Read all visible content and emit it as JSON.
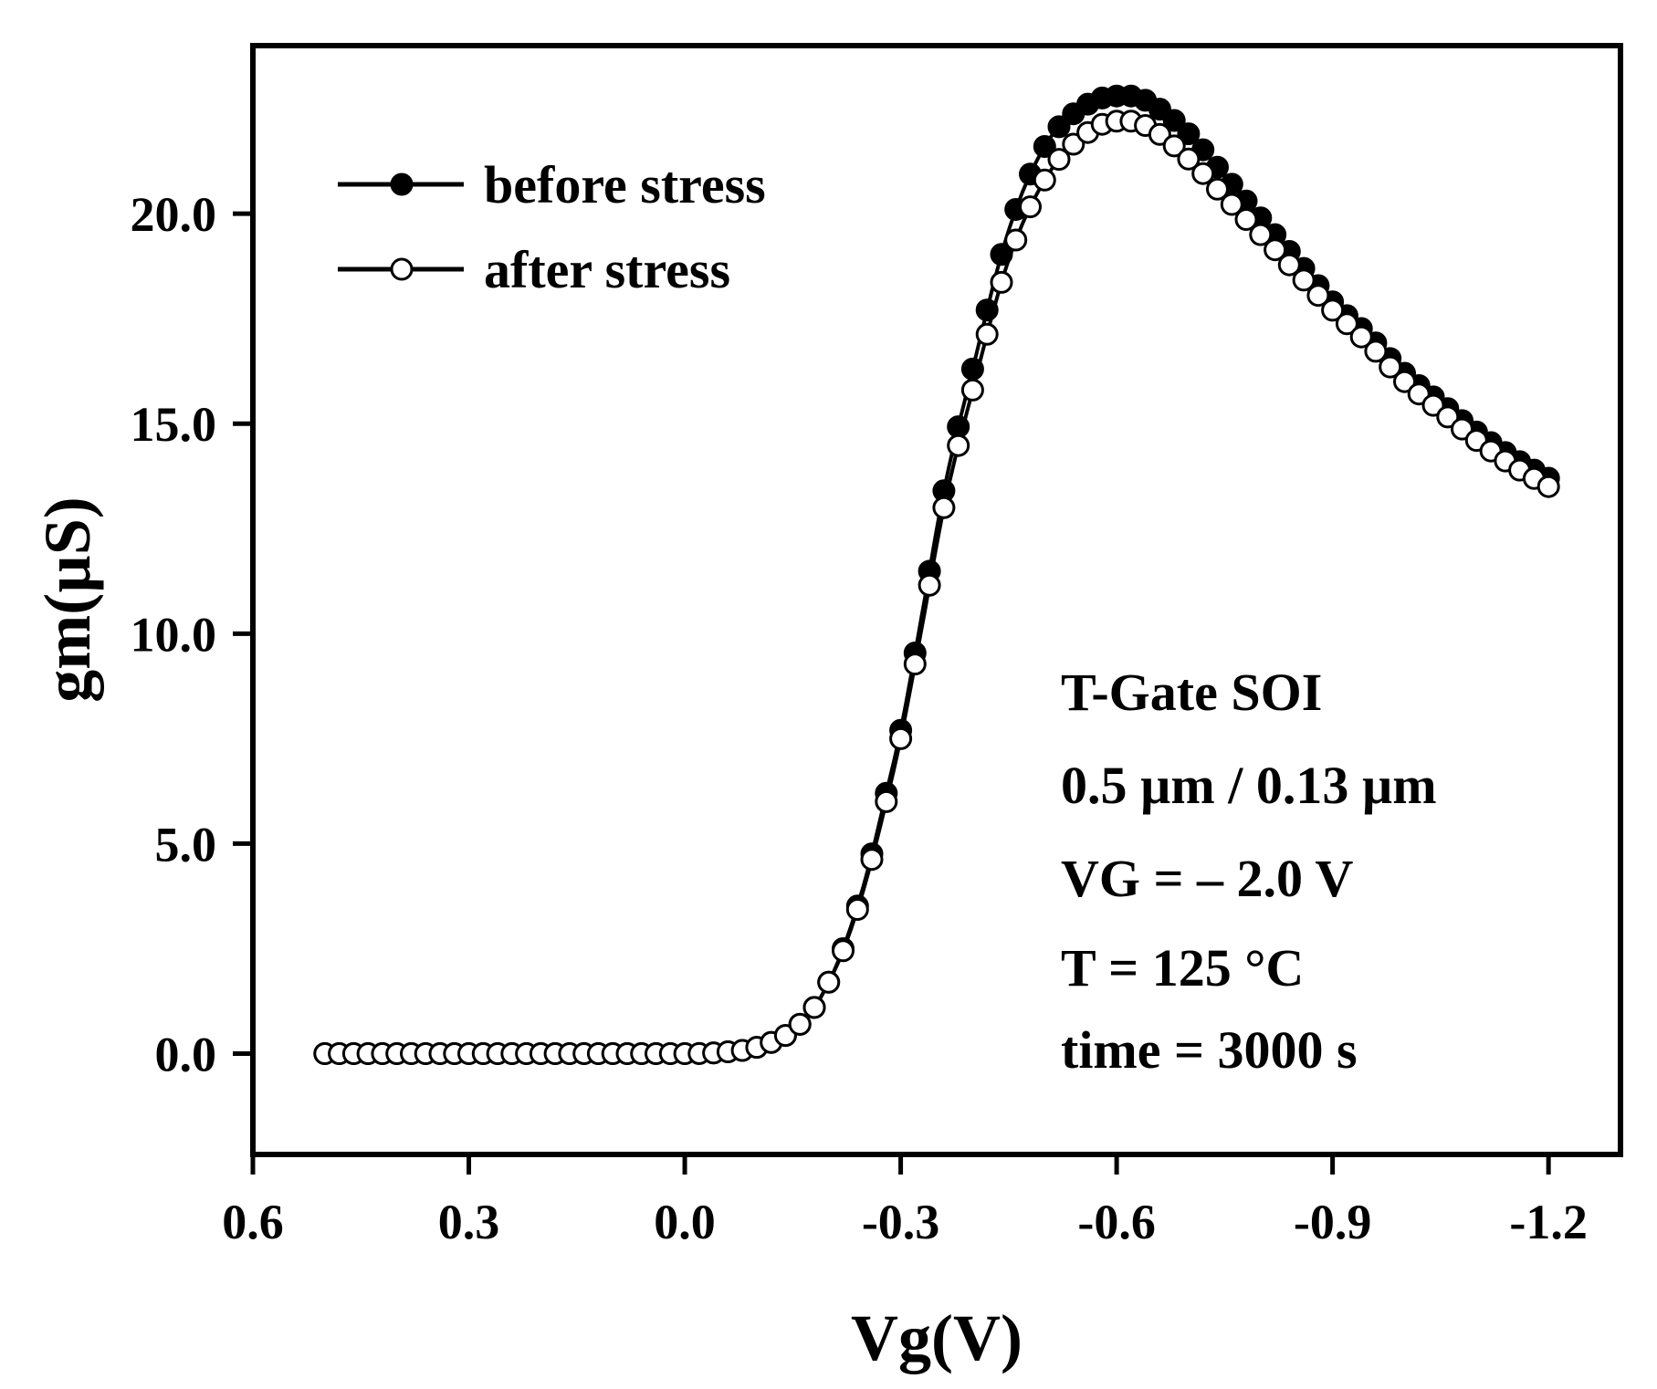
{
  "chart_data": {
    "type": "scatter",
    "title": "",
    "xlabel": "Vg(V)",
    "ylabel": "gm(µS)",
    "xlim": [
      0.6,
      -1.3
    ],
    "ylim": [
      -2.4,
      24.0
    ],
    "x_reversed": true,
    "xticks": [
      0.6,
      0.3,
      0.0,
      -0.3,
      -0.6,
      -0.9,
      -1.2
    ],
    "xtick_labels": [
      "0.6",
      "0.3",
      "0.0",
      "-0.3",
      "-0.6",
      "-0.9",
      "-1.2"
    ],
    "yticks": [
      0.0,
      5.0,
      10.0,
      15.0,
      20.0
    ],
    "ytick_labels": [
      "0.0",
      "5.0",
      "10.0",
      "15.0",
      "20.0"
    ],
    "legend_position": "top-left",
    "annotation_lines": [
      "T-Gate SOI",
      "0.5 µm / 0.13 µm",
      "VG = – 2.0 V",
      "T = 125 °C",
      "time = 3000 s"
    ],
    "series": [
      {
        "name": "before stress",
        "marker": "filled-circle",
        "color": "#000000",
        "points": [
          [
            0.5,
            0.0
          ],
          [
            0.4,
            0.0
          ],
          [
            0.3,
            0.0
          ],
          [
            0.2,
            0.0
          ],
          [
            0.1,
            0.0
          ],
          [
            0.0,
            0.0
          ],
          [
            -0.05,
            0.03
          ],
          [
            -0.1,
            0.15
          ],
          [
            -0.15,
            0.55
          ],
          [
            -0.18,
            1.1
          ],
          [
            -0.2,
            1.7
          ],
          [
            -0.22,
            2.5
          ],
          [
            -0.25,
            4.1
          ],
          [
            -0.28,
            6.2
          ],
          [
            -0.3,
            7.7
          ],
          [
            -0.33,
            10.5
          ],
          [
            -0.36,
            13.4
          ],
          [
            -0.4,
            16.3
          ],
          [
            -0.45,
            19.6
          ],
          [
            -0.5,
            21.6
          ],
          [
            -0.55,
            22.5
          ],
          [
            -0.6,
            22.8
          ],
          [
            -0.62,
            22.8
          ],
          [
            -0.65,
            22.6
          ],
          [
            -0.7,
            21.9
          ],
          [
            -0.75,
            20.9
          ],
          [
            -0.8,
            19.9
          ],
          [
            -0.85,
            18.9
          ],
          [
            -0.9,
            17.9
          ],
          [
            -0.95,
            17.1
          ],
          [
            -1.0,
            16.2
          ],
          [
            -1.05,
            15.5
          ],
          [
            -1.1,
            14.8
          ],
          [
            -1.15,
            14.2
          ],
          [
            -1.2,
            13.7
          ]
        ]
      },
      {
        "name": "after stress",
        "marker": "open-circle",
        "color": "#000000",
        "points": [
          [
            0.5,
            0.0
          ],
          [
            0.4,
            0.0
          ],
          [
            0.3,
            0.0
          ],
          [
            0.2,
            0.0
          ],
          [
            0.1,
            0.0
          ],
          [
            0.0,
            0.0
          ],
          [
            -0.05,
            0.03
          ],
          [
            -0.1,
            0.15
          ],
          [
            -0.15,
            0.55
          ],
          [
            -0.18,
            1.1
          ],
          [
            -0.2,
            1.7
          ],
          [
            -0.22,
            2.45
          ],
          [
            -0.25,
            4.0
          ],
          [
            -0.28,
            6.0
          ],
          [
            -0.3,
            7.5
          ],
          [
            -0.33,
            10.2
          ],
          [
            -0.36,
            13.0
          ],
          [
            -0.4,
            15.8
          ],
          [
            -0.45,
            18.9
          ],
          [
            -0.5,
            20.8
          ],
          [
            -0.55,
            21.8
          ],
          [
            -0.6,
            22.2
          ],
          [
            -0.62,
            22.2
          ],
          [
            -0.65,
            22.0
          ],
          [
            -0.7,
            21.3
          ],
          [
            -0.75,
            20.4
          ],
          [
            -0.8,
            19.5
          ],
          [
            -0.85,
            18.6
          ],
          [
            -0.9,
            17.7
          ],
          [
            -0.95,
            16.9
          ],
          [
            -1.0,
            16.0
          ],
          [
            -1.05,
            15.3
          ],
          [
            -1.1,
            14.6
          ],
          [
            -1.15,
            14.0
          ],
          [
            -1.2,
            13.5
          ]
        ]
      }
    ]
  }
}
